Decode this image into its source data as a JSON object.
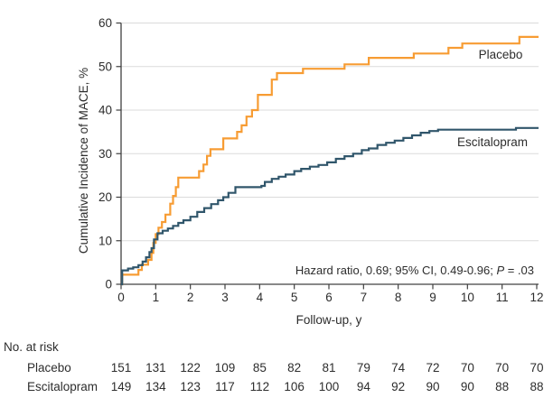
{
  "figure_colors": {
    "placebo": "#F79C33",
    "escitalopram": "#30566B",
    "gridline": "#DBDBDB",
    "axis": "#404040",
    "text": "#2d2d2d",
    "background": "#ffffff"
  },
  "annotation": {
    "text1": "Hazard ratio, 0.69; 95% CI, 0.49-0.96; ",
    "p": "P",
    "text2": " = .03"
  },
  "chart_data": {
    "type": "line",
    "subtype": "step-after",
    "title": "",
    "xlabel": "Follow-up, y",
    "ylabel": "Cumulative Incidence of MACE, %",
    "xlim": [
      0,
      12
    ],
    "ylim": [
      0,
      60
    ],
    "xticks": [
      0,
      1,
      2,
      3,
      4,
      5,
      6,
      7,
      8,
      9,
      10,
      11,
      12
    ],
    "yticks": [
      0,
      10,
      20,
      30,
      40,
      50,
      60
    ],
    "grid": "horizontal",
    "legend_position": "inline-labels-right",
    "annotation": "Hazard ratio, 0.69; 95% CI, 0.49-0.96; P = .03",
    "series": [
      {
        "name": "Placebo",
        "color": "#F79C33",
        "points": [
          [
            0,
            0
          ],
          [
            0.03,
            2.2
          ],
          [
            0.5,
            3.3
          ],
          [
            0.6,
            4.5
          ],
          [
            0.78,
            5.6
          ],
          [
            0.88,
            7.2
          ],
          [
            0.93,
            9.5
          ],
          [
            1.0,
            11.5
          ],
          [
            1.08,
            13
          ],
          [
            1.18,
            14.3
          ],
          [
            1.28,
            16
          ],
          [
            1.42,
            18.5
          ],
          [
            1.5,
            20.3
          ],
          [
            1.58,
            22.3
          ],
          [
            1.65,
            24.5
          ],
          [
            2.25,
            26
          ],
          [
            2.38,
            27.5
          ],
          [
            2.48,
            29.5
          ],
          [
            2.58,
            31
          ],
          [
            2.95,
            33.5
          ],
          [
            3.35,
            35
          ],
          [
            3.48,
            36.5
          ],
          [
            3.62,
            38.5
          ],
          [
            3.78,
            40
          ],
          [
            3.95,
            43.5
          ],
          [
            4.35,
            47
          ],
          [
            4.5,
            48.5
          ],
          [
            5.25,
            49.5
          ],
          [
            6.45,
            50.5
          ],
          [
            7.15,
            52
          ],
          [
            8.45,
            53
          ],
          [
            9.45,
            54.3
          ],
          [
            9.85,
            55.3
          ],
          [
            11.5,
            56.8
          ],
          [
            12,
            56.8
          ]
        ]
      },
      {
        "name": "Escitalopram",
        "color": "#30566B",
        "points": [
          [
            0,
            0
          ],
          [
            0.03,
            3.2
          ],
          [
            0.2,
            3.6
          ],
          [
            0.35,
            3.9
          ],
          [
            0.5,
            4.4
          ],
          [
            0.62,
            5.2
          ],
          [
            0.72,
            6.2
          ],
          [
            0.82,
            7.4
          ],
          [
            0.88,
            8.3
          ],
          [
            0.95,
            10.3
          ],
          [
            1.05,
            11.7
          ],
          [
            1.2,
            12.3
          ],
          [
            1.35,
            12.8
          ],
          [
            1.5,
            13.4
          ],
          [
            1.65,
            14.1
          ],
          [
            1.8,
            14.7
          ],
          [
            2.0,
            15.5
          ],
          [
            2.2,
            16.6
          ],
          [
            2.4,
            17.5
          ],
          [
            2.6,
            18.4
          ],
          [
            2.8,
            19.3
          ],
          [
            2.95,
            20
          ],
          [
            3.1,
            21
          ],
          [
            3.3,
            22.3
          ],
          [
            4.05,
            22.6
          ],
          [
            4.15,
            23.5
          ],
          [
            4.35,
            24.2
          ],
          [
            4.55,
            24.7
          ],
          [
            4.75,
            25.2
          ],
          [
            5.0,
            26
          ],
          [
            5.2,
            26.5
          ],
          [
            5.45,
            27
          ],
          [
            5.7,
            27.4
          ],
          [
            5.95,
            28
          ],
          [
            6.2,
            28.8
          ],
          [
            6.45,
            29.4
          ],
          [
            6.7,
            30
          ],
          [
            6.95,
            30.8
          ],
          [
            7.15,
            31.2
          ],
          [
            7.4,
            32
          ],
          [
            7.65,
            32.5
          ],
          [
            7.9,
            33
          ],
          [
            8.15,
            33.6
          ],
          [
            8.4,
            34.2
          ],
          [
            8.65,
            34.8
          ],
          [
            8.9,
            35.2
          ],
          [
            9.15,
            35.5
          ],
          [
            11.4,
            35.9
          ],
          [
            12,
            35.9
          ]
        ]
      }
    ]
  },
  "risk_table": {
    "title": "No. at risk",
    "times": [
      0,
      1,
      2,
      3,
      4,
      5,
      6,
      7,
      8,
      9,
      10,
      11,
      12
    ],
    "rows": [
      {
        "label": "Placebo",
        "values": [
          151,
          131,
          122,
          109,
          85,
          82,
          81,
          79,
          74,
          72,
          70,
          70,
          70
        ]
      },
      {
        "label": "Escitalopram",
        "values": [
          149,
          134,
          123,
          117,
          112,
          106,
          100,
          94,
          92,
          90,
          90,
          88,
          88
        ]
      }
    ]
  }
}
